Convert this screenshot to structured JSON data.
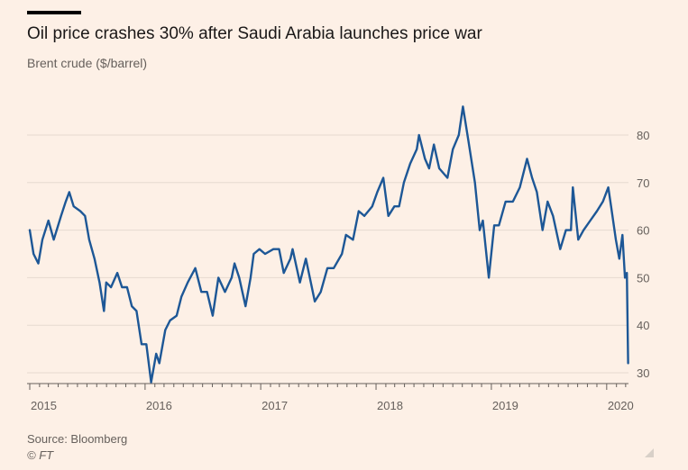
{
  "chart_data": {
    "type": "line",
    "title": "Oil price crashes 30% after Saudi Arabia launches price war",
    "subtitle": "Brent crude ($/barrel)",
    "ylabel": "",
    "xlabel": "",
    "ylim": [
      28,
      88
    ],
    "xlim": [
      "2015-01-01",
      "2020-03-10"
    ],
    "y_ticks": [
      30,
      40,
      50,
      60,
      70,
      80
    ],
    "x_ticks": [
      "2015",
      "2016",
      "2017",
      "2018",
      "2019",
      "2020"
    ],
    "grid": true,
    "series": [
      {
        "color": "#1d5796",
        "points": [
          [
            "2015-01-01",
            60
          ],
          [
            "2015-01-13",
            55
          ],
          [
            "2015-01-28",
            53
          ],
          [
            "2015-02-10",
            58
          ],
          [
            "2015-03-01",
            62
          ],
          [
            "2015-03-18",
            58
          ],
          [
            "2015-04-10",
            63
          ],
          [
            "2015-04-25",
            66
          ],
          [
            "2015-05-06",
            68
          ],
          [
            "2015-05-20",
            65
          ],
          [
            "2015-06-10",
            64
          ],
          [
            "2015-06-25",
            63
          ],
          [
            "2015-07-08",
            58
          ],
          [
            "2015-07-25",
            54
          ],
          [
            "2015-08-10",
            49
          ],
          [
            "2015-08-24",
            43
          ],
          [
            "2015-08-31",
            49
          ],
          [
            "2015-09-15",
            48
          ],
          [
            "2015-10-05",
            51
          ],
          [
            "2015-10-20",
            48
          ],
          [
            "2015-11-05",
            48
          ],
          [
            "2015-11-20",
            44
          ],
          [
            "2015-12-05",
            43
          ],
          [
            "2015-12-21",
            36
          ],
          [
            "2016-01-05",
            36
          ],
          [
            "2016-01-20",
            28
          ],
          [
            "2016-02-05",
            34
          ],
          [
            "2016-02-15",
            32
          ],
          [
            "2016-03-05",
            39
          ],
          [
            "2016-03-20",
            41
          ],
          [
            "2016-04-10",
            42
          ],
          [
            "2016-04-25",
            46
          ],
          [
            "2016-05-15",
            49
          ],
          [
            "2016-06-08",
            52
          ],
          [
            "2016-06-27",
            47
          ],
          [
            "2016-07-15",
            47
          ],
          [
            "2016-08-02",
            42
          ],
          [
            "2016-08-20",
            50
          ],
          [
            "2016-09-10",
            47
          ],
          [
            "2016-10-01",
            50
          ],
          [
            "2016-10-10",
            53
          ],
          [
            "2016-10-25",
            50
          ],
          [
            "2016-11-14",
            44
          ],
          [
            "2016-11-30",
            50
          ],
          [
            "2016-12-10",
            55
          ],
          [
            "2016-12-28",
            56
          ],
          [
            "2017-01-15",
            55
          ],
          [
            "2017-02-10",
            56
          ],
          [
            "2017-02-28",
            56
          ],
          [
            "2017-03-15",
            51
          ],
          [
            "2017-04-05",
            54
          ],
          [
            "2017-04-12",
            56
          ],
          [
            "2017-05-05",
            49
          ],
          [
            "2017-05-24",
            54
          ],
          [
            "2017-06-21",
            45
          ],
          [
            "2017-07-10",
            47
          ],
          [
            "2017-07-31",
            52
          ],
          [
            "2017-08-20",
            52
          ],
          [
            "2017-09-15",
            55
          ],
          [
            "2017-09-28",
            59
          ],
          [
            "2017-10-20",
            58
          ],
          [
            "2017-11-07",
            64
          ],
          [
            "2017-11-25",
            63
          ],
          [
            "2017-12-20",
            65
          ],
          [
            "2018-01-05",
            68
          ],
          [
            "2018-01-24",
            71
          ],
          [
            "2018-02-09",
            63
          ],
          [
            "2018-02-28",
            65
          ],
          [
            "2018-03-15",
            65
          ],
          [
            "2018-03-30",
            70
          ],
          [
            "2018-04-19",
            74
          ],
          [
            "2018-05-10",
            77
          ],
          [
            "2018-05-17",
            80
          ],
          [
            "2018-06-05",
            75
          ],
          [
            "2018-06-18",
            73
          ],
          [
            "2018-07-03",
            78
          ],
          [
            "2018-07-20",
            73
          ],
          [
            "2018-08-15",
            71
          ],
          [
            "2018-09-01",
            77
          ],
          [
            "2018-09-20",
            80
          ],
          [
            "2018-10-03",
            86
          ],
          [
            "2018-10-20",
            79
          ],
          [
            "2018-11-10",
            70
          ],
          [
            "2018-11-25",
            60
          ],
          [
            "2018-12-05",
            62
          ],
          [
            "2018-12-24",
            50
          ],
          [
            "2019-01-10",
            61
          ],
          [
            "2019-01-25",
            61
          ],
          [
            "2019-02-15",
            66
          ],
          [
            "2019-03-10",
            66
          ],
          [
            "2019-04-01",
            69
          ],
          [
            "2019-04-24",
            75
          ],
          [
            "2019-05-10",
            71
          ],
          [
            "2019-05-25",
            68
          ],
          [
            "2019-06-12",
            60
          ],
          [
            "2019-06-28",
            66
          ],
          [
            "2019-07-15",
            63
          ],
          [
            "2019-08-07",
            56
          ],
          [
            "2019-08-25",
            60
          ],
          [
            "2019-09-10",
            60
          ],
          [
            "2019-09-16",
            69
          ],
          [
            "2019-10-03",
            58
          ],
          [
            "2019-10-20",
            60
          ],
          [
            "2019-11-10",
            62
          ],
          [
            "2019-12-01",
            64
          ],
          [
            "2019-12-20",
            66
          ],
          [
            "2020-01-06",
            69
          ],
          [
            "2020-01-15",
            65
          ],
          [
            "2020-01-30",
            58
          ],
          [
            "2020-02-10",
            54
          ],
          [
            "2020-02-20",
            59
          ],
          [
            "2020-02-28",
            50
          ],
          [
            "2020-03-05",
            51
          ],
          [
            "2020-03-09",
            32
          ]
        ]
      }
    ]
  },
  "footer": {
    "source": "Source: Bloomberg",
    "copyright": "© FT",
    "resize_icon": "resize-handle-icon"
  }
}
